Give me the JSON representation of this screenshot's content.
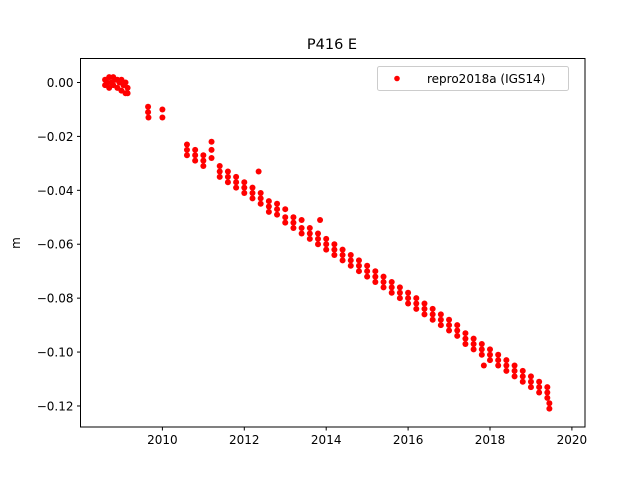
{
  "chart_data": {
    "type": "scatter",
    "title": "P416 E",
    "xlabel": "",
    "ylabel": "m",
    "xlim": [
      2008.0,
      2020.32
    ],
    "ylim": [
      -0.1278,
      0.0089
    ],
    "xticks": [
      2010,
      2012,
      2014,
      2016,
      2018,
      2020
    ],
    "xtick_labels": [
      "2010",
      "2012",
      "2014",
      "2016",
      "2018",
      "2020"
    ],
    "yticks": [
      0.0,
      -0.02,
      -0.04,
      -0.06,
      -0.08,
      -0.1,
      -0.12
    ],
    "ytick_labels": [
      "0.00",
      "−0.02",
      "−0.04",
      "−0.06",
      "−0.08",
      "−0.10",
      "−0.12"
    ],
    "grid": false,
    "legend_position": "top-right",
    "series": [
      {
        "name": "repro2018a (IGS14)",
        "color": "#ff0000",
        "marker": "circle",
        "points": [
          [
            2008.6,
            0.001
          ],
          [
            2008.6,
            -0.001
          ],
          [
            2008.65,
            0.0
          ],
          [
            2008.7,
            0.002
          ],
          [
            2008.7,
            -0.002
          ],
          [
            2008.75,
            0.0
          ],
          [
            2008.8,
            0.002
          ],
          [
            2008.8,
            -0.001
          ],
          [
            2008.85,
            0.001
          ],
          [
            2008.9,
            0.001
          ],
          [
            2008.9,
            -0.002
          ],
          [
            2008.95,
            0.0
          ],
          [
            2009.0,
            0.001
          ],
          [
            2009.0,
            -0.003
          ],
          [
            2009.05,
            -0.001
          ],
          [
            2009.1,
            0.0
          ],
          [
            2009.1,
            -0.004
          ],
          [
            2009.15,
            -0.002
          ],
          [
            2009.15,
            -0.004
          ],
          [
            2009.65,
            -0.009
          ],
          [
            2009.65,
            -0.011
          ],
          [
            2009.66,
            -0.013
          ],
          [
            2010.0,
            -0.01
          ],
          [
            2010.0,
            -0.013
          ],
          [
            2010.6,
            -0.023
          ],
          [
            2010.6,
            -0.025
          ],
          [
            2010.6,
            -0.027
          ],
          [
            2010.8,
            -0.025
          ],
          [
            2010.8,
            -0.027
          ],
          [
            2010.8,
            -0.029
          ],
          [
            2011.0,
            -0.027
          ],
          [
            2011.0,
            -0.029
          ],
          [
            2011.0,
            -0.031
          ],
          [
            2011.2,
            -0.022
          ],
          [
            2011.2,
            -0.025
          ],
          [
            2011.2,
            -0.028
          ],
          [
            2011.4,
            -0.031
          ],
          [
            2011.4,
            -0.033
          ],
          [
            2011.4,
            -0.035
          ],
          [
            2011.6,
            -0.033
          ],
          [
            2011.6,
            -0.035
          ],
          [
            2011.6,
            -0.037
          ],
          [
            2011.8,
            -0.035
          ],
          [
            2011.8,
            -0.037
          ],
          [
            2011.8,
            -0.039
          ],
          [
            2012.0,
            -0.037
          ],
          [
            2012.0,
            -0.039
          ],
          [
            2012.0,
            -0.041
          ],
          [
            2012.2,
            -0.039
          ],
          [
            2012.2,
            -0.041
          ],
          [
            2012.2,
            -0.043
          ],
          [
            2012.4,
            -0.041
          ],
          [
            2012.4,
            -0.043
          ],
          [
            2012.4,
            -0.045
          ],
          [
            2012.6,
            -0.044
          ],
          [
            2012.6,
            -0.046
          ],
          [
            2012.6,
            -0.048
          ],
          [
            2012.8,
            -0.045
          ],
          [
            2012.8,
            -0.047
          ],
          [
            2012.8,
            -0.049
          ],
          [
            2013.0,
            -0.047
          ],
          [
            2013.0,
            -0.05
          ],
          [
            2013.0,
            -0.052
          ],
          [
            2013.2,
            -0.05
          ],
          [
            2013.2,
            -0.052
          ],
          [
            2013.2,
            -0.054
          ],
          [
            2013.4,
            -0.051
          ],
          [
            2013.4,
            -0.054
          ],
          [
            2013.4,
            -0.056
          ],
          [
            2013.6,
            -0.054
          ],
          [
            2013.6,
            -0.056
          ],
          [
            2013.6,
            -0.058
          ],
          [
            2013.8,
            -0.056
          ],
          [
            2013.8,
            -0.058
          ],
          [
            2013.8,
            -0.06
          ],
          [
            2014.0,
            -0.058
          ],
          [
            2014.0,
            -0.06
          ],
          [
            2014.0,
            -0.062
          ],
          [
            2014.2,
            -0.06
          ],
          [
            2014.2,
            -0.062
          ],
          [
            2014.2,
            -0.064
          ],
          [
            2014.4,
            -0.062
          ],
          [
            2014.4,
            -0.064
          ],
          [
            2014.4,
            -0.066
          ],
          [
            2014.6,
            -0.064
          ],
          [
            2014.6,
            -0.066
          ],
          [
            2014.6,
            -0.068
          ],
          [
            2014.8,
            -0.066
          ],
          [
            2014.8,
            -0.068
          ],
          [
            2014.8,
            -0.07
          ],
          [
            2015.0,
            -0.068
          ],
          [
            2015.0,
            -0.07
          ],
          [
            2015.0,
            -0.072
          ],
          [
            2015.2,
            -0.07
          ],
          [
            2015.2,
            -0.072
          ],
          [
            2015.2,
            -0.074
          ],
          [
            2015.4,
            -0.072
          ],
          [
            2015.4,
            -0.074
          ],
          [
            2015.4,
            -0.076
          ],
          [
            2015.6,
            -0.074
          ],
          [
            2015.6,
            -0.076
          ],
          [
            2015.6,
            -0.078
          ],
          [
            2015.8,
            -0.076
          ],
          [
            2015.8,
            -0.078
          ],
          [
            2015.8,
            -0.08
          ],
          [
            2016.0,
            -0.078
          ],
          [
            2016.0,
            -0.08
          ],
          [
            2016.0,
            -0.082
          ],
          [
            2016.2,
            -0.08
          ],
          [
            2016.2,
            -0.082
          ],
          [
            2016.2,
            -0.084
          ],
          [
            2016.4,
            -0.082
          ],
          [
            2016.4,
            -0.084
          ],
          [
            2016.4,
            -0.086
          ],
          [
            2016.6,
            -0.084
          ],
          [
            2016.6,
            -0.086
          ],
          [
            2016.6,
            -0.088
          ],
          [
            2016.8,
            -0.086
          ],
          [
            2016.8,
            -0.088
          ],
          [
            2016.8,
            -0.09
          ],
          [
            2017.0,
            -0.088
          ],
          [
            2017.0,
            -0.09
          ],
          [
            2017.0,
            -0.092
          ],
          [
            2017.2,
            -0.09
          ],
          [
            2017.2,
            -0.092
          ],
          [
            2017.2,
            -0.094
          ],
          [
            2017.4,
            -0.093
          ],
          [
            2017.4,
            -0.095
          ],
          [
            2017.4,
            -0.097
          ],
          [
            2017.6,
            -0.095
          ],
          [
            2017.6,
            -0.097
          ],
          [
            2017.6,
            -0.099
          ],
          [
            2017.8,
            -0.097
          ],
          [
            2017.8,
            -0.099
          ],
          [
            2017.8,
            -0.101
          ],
          [
            2018.0,
            -0.099
          ],
          [
            2018.0,
            -0.101
          ],
          [
            2018.0,
            -0.103
          ],
          [
            2018.2,
            -0.101
          ],
          [
            2018.2,
            -0.103
          ],
          [
            2018.2,
            -0.105
          ],
          [
            2018.4,
            -0.103
          ],
          [
            2018.4,
            -0.105
          ],
          [
            2018.4,
            -0.107
          ],
          [
            2018.6,
            -0.105
          ],
          [
            2018.6,
            -0.107
          ],
          [
            2018.6,
            -0.109
          ],
          [
            2018.8,
            -0.107
          ],
          [
            2018.8,
            -0.109
          ],
          [
            2018.8,
            -0.111
          ],
          [
            2019.0,
            -0.109
          ],
          [
            2019.0,
            -0.111
          ],
          [
            2019.0,
            -0.113
          ],
          [
            2019.2,
            -0.111
          ],
          [
            2019.2,
            -0.113
          ],
          [
            2019.2,
            -0.115
          ],
          [
            2019.4,
            -0.113
          ],
          [
            2019.4,
            -0.115
          ],
          [
            2019.4,
            -0.117
          ],
          [
            2012.35,
            -0.033
          ],
          [
            2013.85,
            -0.051
          ],
          [
            2017.85,
            -0.105
          ],
          [
            2019.45,
            -0.121
          ],
          [
            2019.45,
            -0.119
          ]
        ]
      }
    ]
  }
}
